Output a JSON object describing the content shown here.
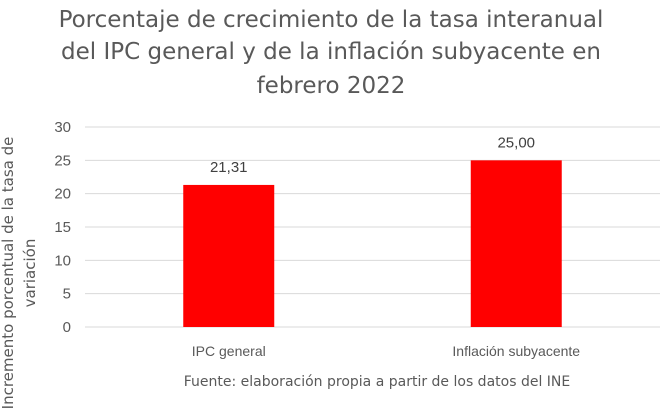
{
  "chart_data": {
    "type": "bar",
    "title_lines": [
      "Porcentaje de crecimiento de la tasa interanual",
      "del IPC general y de la inflación subyacente en",
      "febrero 2022"
    ],
    "categories": [
      "IPC general",
      "Inflación subyacente"
    ],
    "values": [
      21.31,
      25.0
    ],
    "data_labels": [
      "21,31",
      "25,00"
    ],
    "ylabel_lines": [
      "Incremento porcentual de la tasa de",
      "variación"
    ],
    "xlabel": "",
    "ylim": [
      0,
      30
    ],
    "yticks": [
      0,
      5,
      10,
      15,
      20,
      25,
      30
    ],
    "grid": true,
    "bar_color": "#ff0000",
    "source_note": "Fuente: elaboración propia a partir de los datos del INE"
  }
}
